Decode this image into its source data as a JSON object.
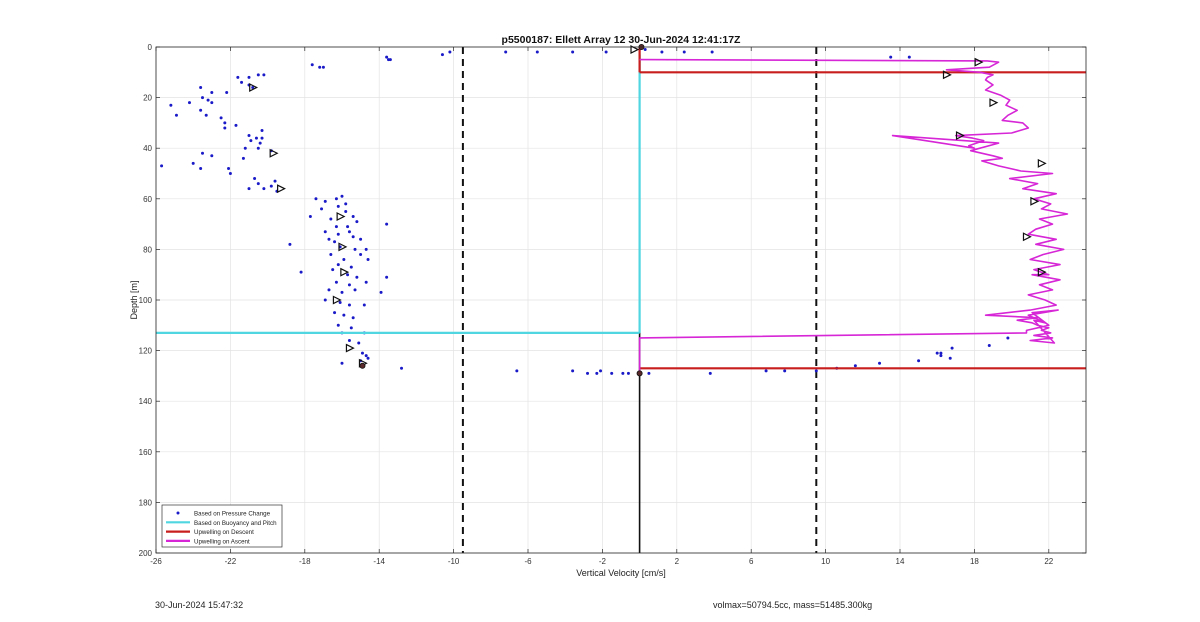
{
  "chart_data": {
    "type": "line",
    "title": "p5500187: Ellett Array 12 30-Jun-2024 12:41:17Z",
    "xlabel": "Vertical Velocity [cm/s]",
    "ylabel": "Depth [m]",
    "xlim": [
      -26,
      24
    ],
    "ylim": [
      0,
      200
    ],
    "y_reversed": true,
    "xticks": [
      -26,
      -22,
      -18,
      -14,
      -10,
      -6,
      -2,
      2,
      6,
      10,
      14,
      18,
      22
    ],
    "yticks": [
      0,
      20,
      40,
      60,
      80,
      100,
      120,
      140,
      160,
      180,
      200
    ],
    "grid": true,
    "legend_position": "bottom-left",
    "legend": [
      {
        "label": "Based on Pressure Change",
        "style": "dot",
        "color": "#1a1ac8"
      },
      {
        "label": "Based on Buoyancy and Pitch",
        "style": "line",
        "color": "#4fd6e0"
      },
      {
        "label": "Upwelling on Descent",
        "style": "line",
        "color": "#c81e1e"
      },
      {
        "label": "Upwelling on Ascent",
        "style": "line",
        "color": "#d626d6"
      }
    ],
    "reference_lines": {
      "dashed_x": [
        -9.5,
        9.5
      ],
      "solid_x": 0,
      "dashed_color": "#111111"
    },
    "series": [
      {
        "name": "Based on Pressure Change",
        "kind": "scatter",
        "color": "#1a1ac8",
        "points": [
          [
            -17.6,
            7
          ],
          [
            -17.2,
            8
          ],
          [
            -17,
            8
          ],
          [
            -13.6,
            4
          ],
          [
            -13.5,
            5
          ],
          [
            -13.4,
            5
          ],
          [
            -10.6,
            3
          ],
          [
            -10.2,
            2
          ],
          [
            -7.2,
            2
          ],
          [
            -5.5,
            2
          ],
          [
            -3.6,
            2
          ],
          [
            -1.8,
            2
          ],
          [
            0.3,
            1
          ],
          [
            1.2,
            2
          ],
          [
            2.4,
            2
          ],
          [
            3.9,
            2
          ],
          [
            -20.5,
            11
          ],
          [
            -20.2,
            11
          ],
          [
            -21.0,
            12
          ],
          [
            -21.6,
            12
          ],
          [
            -21.4,
            14
          ],
          [
            -21.0,
            15
          ],
          [
            -20.8,
            16
          ],
          [
            -22.2,
            18
          ],
          [
            -23.6,
            16
          ],
          [
            -23.0,
            18
          ],
          [
            -23.5,
            20
          ],
          [
            -23.2,
            21
          ],
          [
            -23.0,
            22
          ],
          [
            -24.2,
            22
          ],
          [
            -25.2,
            23
          ],
          [
            -24.9,
            27
          ],
          [
            -23.6,
            25
          ],
          [
            -23.3,
            27
          ],
          [
            -22.5,
            28
          ],
          [
            -22.3,
            30
          ],
          [
            -21.7,
            31
          ],
          [
            -22.3,
            32
          ],
          [
            -20.3,
            33
          ],
          [
            -21.0,
            35
          ],
          [
            -20.6,
            36
          ],
          [
            -20.3,
            36
          ],
          [
            -20.9,
            37
          ],
          [
            -20.4,
            38
          ],
          [
            -20.5,
            40
          ],
          [
            -21.2,
            40
          ],
          [
            -19.8,
            41
          ],
          [
            -23.5,
            42
          ],
          [
            -23.0,
            43
          ],
          [
            -21.3,
            44
          ],
          [
            -24.0,
            46
          ],
          [
            -23.6,
            48
          ],
          [
            -22.1,
            48
          ],
          [
            -22.0,
            50
          ],
          [
            -25.7,
            47
          ],
          [
            -20.7,
            52
          ],
          [
            -20.5,
            54
          ],
          [
            -19.8,
            55
          ],
          [
            -20.2,
            56
          ],
          [
            -21.0,
            56
          ],
          [
            -19.5,
            57
          ],
          [
            -19.6,
            53
          ],
          [
            -17.4,
            60
          ],
          [
            -16.0,
            59
          ],
          [
            -16.3,
            60
          ],
          [
            -16.9,
            61
          ],
          [
            -15.8,
            62
          ],
          [
            -16.2,
            63
          ],
          [
            -17.1,
            64
          ],
          [
            -17.7,
            67
          ],
          [
            -15.8,
            65
          ],
          [
            -15.4,
            67
          ],
          [
            -16.6,
            68
          ],
          [
            -15.2,
            69
          ],
          [
            -16.3,
            71
          ],
          [
            -15.7,
            71
          ],
          [
            -16.9,
            73
          ],
          [
            -16.2,
            74
          ],
          [
            -15.6,
            73
          ],
          [
            -15.4,
            75
          ],
          [
            -16.7,
            76
          ],
          [
            -16.4,
            77
          ],
          [
            -13.6,
            70
          ],
          [
            -15.0,
            76
          ],
          [
            -18.8,
            78
          ],
          [
            -16.1,
            79
          ],
          [
            -15.3,
            80
          ],
          [
            -14.7,
            80
          ],
          [
            -16.6,
            82
          ],
          [
            -15.9,
            84
          ],
          [
            -15.0,
            82
          ],
          [
            -16.2,
            86
          ],
          [
            -15.5,
            87
          ],
          [
            -14.6,
            84
          ],
          [
            -16.5,
            88
          ],
          [
            -18.2,
            89
          ],
          [
            -15.7,
            90
          ],
          [
            -15.2,
            91
          ],
          [
            -13.6,
            91
          ],
          [
            -16.3,
            93
          ],
          [
            -15.6,
            94
          ],
          [
            -14.7,
            93
          ],
          [
            -16.7,
            96
          ],
          [
            -16.0,
            97
          ],
          [
            -15.3,
            96
          ],
          [
            -13.9,
            97
          ],
          [
            -16.9,
            100
          ],
          [
            -16.1,
            101
          ],
          [
            -15.6,
            102
          ],
          [
            -14.8,
            102
          ],
          [
            -16.4,
            105
          ],
          [
            -15.9,
            106
          ],
          [
            -15.4,
            107
          ],
          [
            -16.2,
            110
          ],
          [
            -15.5,
            111
          ],
          [
            -16.0,
            113
          ],
          [
            -14.8,
            113
          ],
          [
            -15.6,
            116
          ],
          [
            -15.1,
            117
          ],
          [
            -14.9,
            121
          ],
          [
            -14.7,
            122
          ],
          [
            -14.6,
            123
          ],
          [
            -15.0,
            124
          ],
          [
            -16.0,
            125
          ],
          [
            -12.8,
            127
          ],
          [
            -14.9,
            126
          ],
          [
            -6.6,
            128
          ],
          [
            -3.6,
            128
          ],
          [
            -2.8,
            129
          ],
          [
            -2.3,
            129
          ],
          [
            -2.1,
            128
          ],
          [
            -1.5,
            129
          ],
          [
            -0.9,
            129
          ],
          [
            -0.6,
            129
          ],
          [
            0,
            129
          ],
          [
            0.5,
            129
          ],
          [
            3.8,
            129
          ],
          [
            6.8,
            128
          ],
          [
            7.8,
            128
          ],
          [
            9.5,
            128
          ],
          [
            10.6,
            127
          ],
          [
            11.6,
            126
          ],
          [
            12.9,
            125
          ],
          [
            15.0,
            124
          ],
          [
            16.7,
            123
          ],
          [
            16.2,
            122
          ],
          [
            16.0,
            121
          ],
          [
            16.2,
            121
          ],
          [
            16.8,
            119
          ],
          [
            18.8,
            118
          ],
          [
            19.8,
            115
          ],
          [
            13.5,
            4
          ],
          [
            14.5,
            4
          ]
        ]
      },
      {
        "name": "Based on Buoyancy and Pitch",
        "kind": "line",
        "color": "#4fd6e0",
        "segments": [
          [
            [
              -26,
              113
            ],
            [
              0,
              113
            ]
          ],
          [
            [
              0,
              3
            ],
            [
              0,
              113
            ]
          ]
        ]
      },
      {
        "name": "Upwelling on Descent",
        "kind": "line",
        "color": "#c81e1e",
        "segments": [
          [
            [
              0,
              0
            ],
            [
              0,
              10
            ]
          ],
          [
            [
              0,
              10
            ],
            [
              24,
              10
            ]
          ],
          [
            [
              0,
              127
            ],
            [
              24,
              127
            ]
          ]
        ]
      },
      {
        "name": "Upwelling on Ascent",
        "kind": "line",
        "color": "#d626d6",
        "x": [
          0,
          18.7,
          19.3,
          18.8,
          16.5,
          18.3,
          19.0,
          18.7,
          18.6,
          19.0,
          18.6,
          19.4,
          19.9,
          19.7,
          20.3,
          19.8,
          19.5,
          20.6,
          20.9,
          20.0,
          17.0,
          17.9,
          18.5,
          17.7,
          18.0,
          13.6,
          19.3,
          17.8,
          19.0,
          19.5,
          18.4,
          19.3,
          20.5,
          22.2,
          19.9,
          21.4,
          20.6,
          22.4,
          21.2,
          22.1,
          21.6,
          23.0,
          21.5,
          22.2,
          21.3,
          20.9,
          22.4,
          21.3,
          22.8,
          21.7,
          21.0,
          22.6,
          21.2,
          22.0,
          21.1,
          22.6,
          21.5,
          22.2,
          20.9,
          21.8,
          22.4,
          21.0,
          18.6,
          21.4,
          20.3,
          21.1,
          21.4,
          22.0,
          21.6,
          22.1,
          21.2,
          22.2,
          21.0,
          22.3,
          21.2,
          21.8,
          20.9,
          22.5,
          21.1,
          22.0,
          20.8,
          20.8,
          0,
          0
        ],
        "y": [
          5,
          5.5,
          6,
          8,
          9,
          10,
          11,
          12,
          13,
          15,
          17,
          19,
          21,
          23,
          25,
          27,
          29,
          30,
          32,
          34,
          35,
          36,
          37,
          39,
          40,
          35,
          38,
          41,
          43,
          44,
          45,
          47,
          49,
          50,
          52,
          54,
          56,
          58,
          60,
          62,
          64,
          66,
          68,
          70,
          72,
          74,
          76,
          78,
          80,
          82,
          84,
          86,
          88,
          90,
          90,
          92,
          94,
          96,
          98,
          100,
          102,
          104,
          106,
          107,
          108,
          109,
          110,
          111,
          112,
          113,
          114,
          115,
          116,
          117,
          108,
          109,
          106,
          104,
          105,
          110,
          112,
          113,
          115,
          128
        ]
      }
    ],
    "markers": {
      "style": "open-triangle-right",
      "color": "#111111",
      "points": [
        [
          -0.3,
          1
        ],
        [
          18.2,
          6
        ],
        [
          16.5,
          11
        ],
        [
          19.0,
          22
        ],
        [
          17.2,
          35
        ],
        [
          21.6,
          46
        ],
        [
          21.2,
          61
        ],
        [
          20.8,
          75
        ],
        [
          21.6,
          89
        ],
        [
          -20.8,
          16
        ],
        [
          -19.7,
          42
        ],
        [
          -19.3,
          56
        ],
        [
          -16.1,
          67
        ],
        [
          -16.0,
          79
        ],
        [
          -15.9,
          89
        ],
        [
          -16.3,
          100
        ],
        [
          -15.6,
          119
        ],
        [
          -14.9,
          125
        ]
      ],
      "filled_points": [
        [
          0,
          129
        ],
        [
          -14.9,
          126
        ],
        [
          0.1,
          0
        ]
      ]
    }
  },
  "footer": {
    "left": "30-Jun-2024 15:47:32",
    "right": "volmax=50794.5cc, mass=51485.300kg"
  }
}
